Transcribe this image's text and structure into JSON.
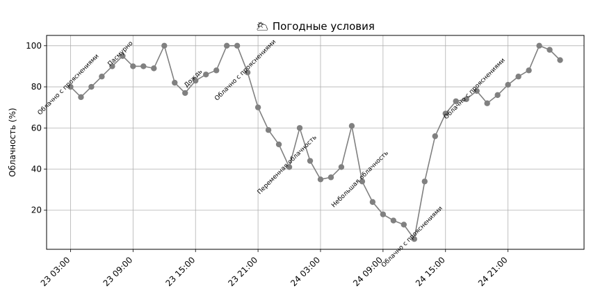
{
  "chart_data": {
    "type": "line",
    "title": "🌥 Погодные условия",
    "ylabel": "Облачность (%)",
    "xlabel": "",
    "ylim": [
      1,
      105
    ],
    "yticks": [
      20,
      40,
      60,
      80,
      100
    ],
    "grid": true,
    "x_tick_labels": [
      "23 03:00",
      "23 09:00",
      "23 15:00",
      "23 21:00",
      "24 03:00",
      "24 09:00",
      "24 15:00",
      "24 21:00"
    ],
    "x_tick_indices": [
      0,
      6,
      12,
      18,
      24,
      30,
      36,
      42
    ],
    "x_range": [
      -2.3,
      49.3
    ],
    "series": [
      {
        "color": "#808080",
        "values": [
          80,
          75,
          80,
          85,
          90,
          95,
          90,
          90,
          89,
          100,
          82,
          77,
          83,
          86,
          88,
          100,
          100,
          87,
          70,
          59,
          52,
          41,
          60,
          44,
          35,
          36,
          41,
          61,
          34,
          24,
          18,
          15,
          13,
          6,
          34,
          56,
          67,
          73,
          74,
          78,
          72,
          76,
          81,
          85,
          88,
          100,
          98,
          93
        ]
      }
    ],
    "annotations": [
      {
        "index": 0,
        "text": "Облачно с прояснениями"
      },
      {
        "index": 5,
        "text": "Пасмурно"
      },
      {
        "index": 12,
        "text": "Дождь"
      },
      {
        "index": 17,
        "text": "Облачно с прояснениями"
      },
      {
        "index": 21,
        "text": "Переменная облачность"
      },
      {
        "index": 28,
        "text": "Небольшая облачность"
      },
      {
        "index": 33,
        "text": "Облачно с прояснениями"
      },
      {
        "index": 39,
        "text": "Облачно с прояснениями"
      }
    ]
  }
}
